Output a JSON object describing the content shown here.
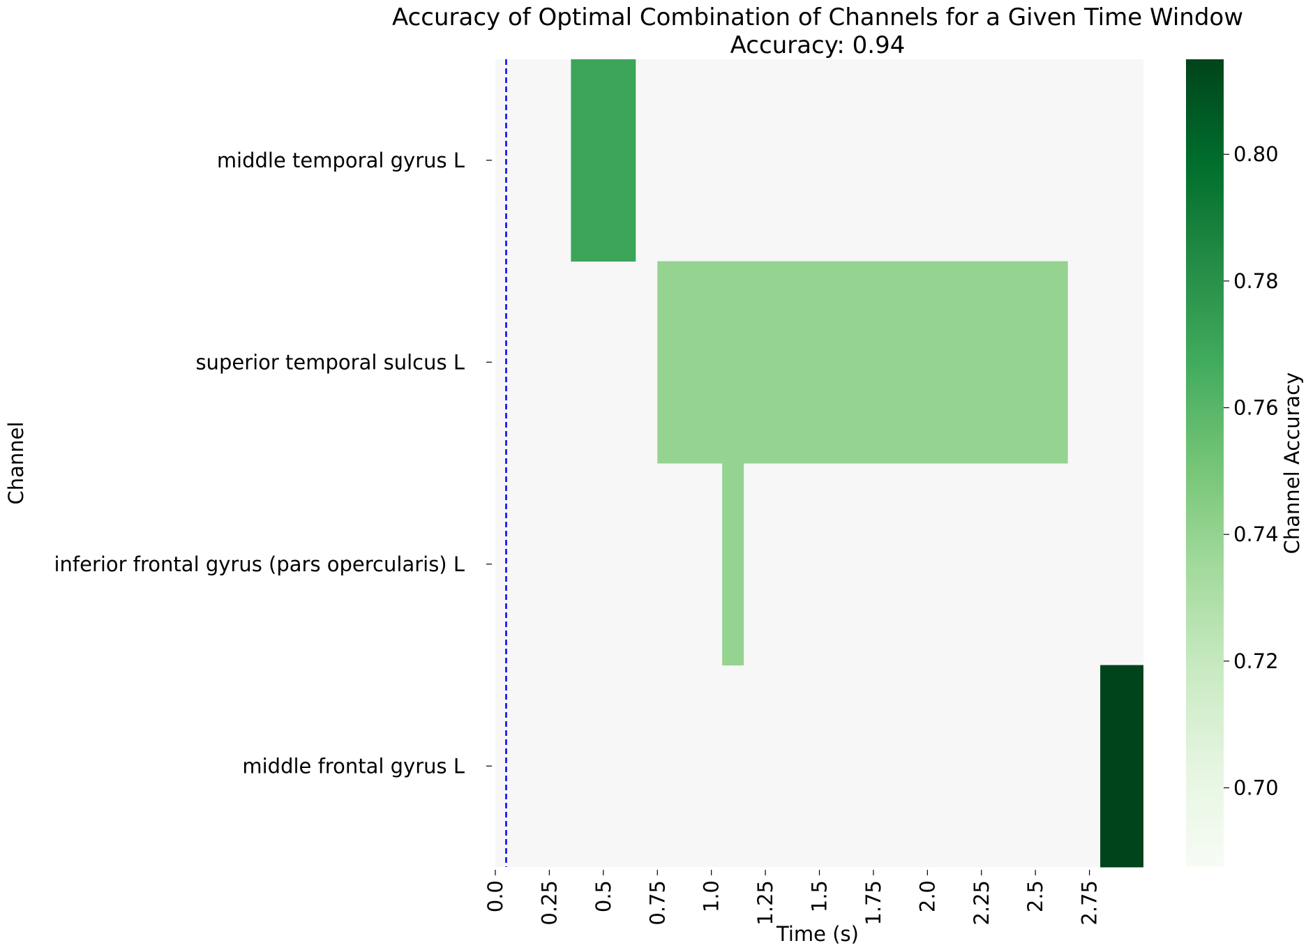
{
  "chart_data": {
    "type": "heatmap",
    "title": "Accuracy of Optimal Combination of Channels for a Given Time Window",
    "subtitle": "Accuracy: 0.94",
    "xlabel": "Time (s)",
    "ylabel": "Channel",
    "x_ticks": [
      "0.0",
      "0.25",
      "0.5",
      "0.75",
      "1.0",
      "1.25",
      "1.5",
      "1.75",
      "2.0",
      "2.25",
      "2.5",
      "2.75"
    ],
    "x_tick_values": [
      0.0,
      0.25,
      0.5,
      0.75,
      1.0,
      1.25,
      1.5,
      1.75,
      2.0,
      2.25,
      2.5,
      2.75
    ],
    "xlim": [
      0.0,
      3.0
    ],
    "channels": [
      "middle temporal gyrus L",
      "superior temporal sulcus L",
      "inferior frontal gyrus (pars opercularis) L",
      "middle frontal gyrus L"
    ],
    "background_color": "#f7f7f7",
    "cells": [
      {
        "channel": "middle temporal gyrus L",
        "start": 0.35,
        "end": 0.65,
        "value": 0.77
      },
      {
        "channel": "superior temporal sulcus L",
        "start": 0.75,
        "end": 2.65,
        "value": 0.74
      },
      {
        "channel": "inferior frontal gyrus (pars opercularis) L",
        "start": 1.05,
        "end": 1.15,
        "value": 0.74
      },
      {
        "channel": "middle frontal gyrus L",
        "start": 2.8,
        "end": 3.0,
        "value": 0.815
      }
    ],
    "reference_line": {
      "x": 0.05,
      "color": "#0000ff",
      "style": "dashed"
    },
    "colorbar": {
      "label": "Channel Accuracy",
      "ticks": [
        "0.70",
        "0.72",
        "0.74",
        "0.76",
        "0.78",
        "0.80"
      ],
      "tick_values": [
        0.7,
        0.72,
        0.74,
        0.76,
        0.78,
        0.8
      ],
      "vmin": 0.6875,
      "vmax": 0.815,
      "colormap": "Greens"
    }
  }
}
